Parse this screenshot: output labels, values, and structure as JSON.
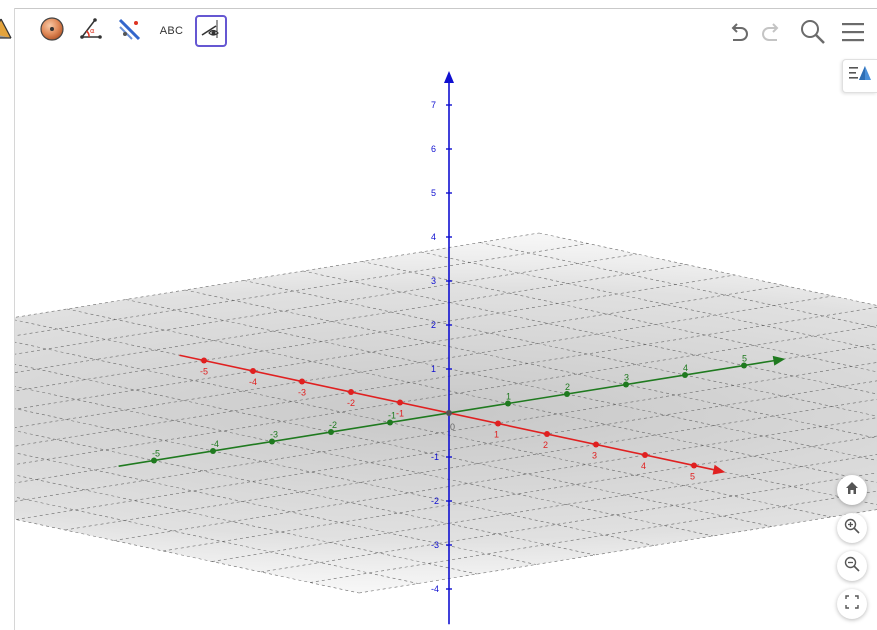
{
  "toolbar": {
    "tools": [
      {
        "icon": "pyramid-icon",
        "selected": false
      },
      {
        "icon": "sphere-icon",
        "selected": false
      },
      {
        "icon": "angle-icon",
        "selected": false
      },
      {
        "icon": "reflect-line-icon",
        "selected": false
      },
      {
        "label": "ABC",
        "icon": "text-tool-icon",
        "selected": false
      },
      {
        "icon": "show-hide-object-icon",
        "selected": true
      }
    ],
    "right": [
      "undo-icon",
      "redo-icon",
      "search-icon",
      "menu-icon"
    ]
  },
  "stylebar": {
    "icon": "graphics-style-bar-icon"
  },
  "graphics3d": {
    "x_axis": {
      "color": "#e02020",
      "tick_labels": [
        "-5",
        "-4",
        "-3",
        "-2",
        "-1",
        "1",
        "2",
        "3",
        "4",
        "5"
      ],
      "range": [
        -5,
        5
      ]
    },
    "y_axis": {
      "color": "#1f7a1f",
      "tick_labels": [
        "-5",
        "-4",
        "-3",
        "-2",
        "-1",
        "1",
        "2",
        "3",
        "4",
        "5"
      ],
      "range": [
        -5,
        5
      ]
    },
    "z_axis": {
      "color": "#1010d0",
      "tick_labels": [
        "-4",
        "-3",
        "-2",
        "-1",
        "1",
        "2",
        "3",
        "4",
        "5",
        "6",
        "7"
      ],
      "range": [
        -4,
        7
      ]
    },
    "origin_label": "0",
    "plane_grid": true
  },
  "zoom_controls": [
    "home-icon",
    "zoom-in-icon",
    "zoom-out-icon",
    "fullscreen-icon"
  ],
  "colors": {
    "selected_tool_border": "#6557d2",
    "x_axis": "#e02020",
    "y_axis": "#1f7a1f",
    "z_axis": "#1010d0"
  }
}
